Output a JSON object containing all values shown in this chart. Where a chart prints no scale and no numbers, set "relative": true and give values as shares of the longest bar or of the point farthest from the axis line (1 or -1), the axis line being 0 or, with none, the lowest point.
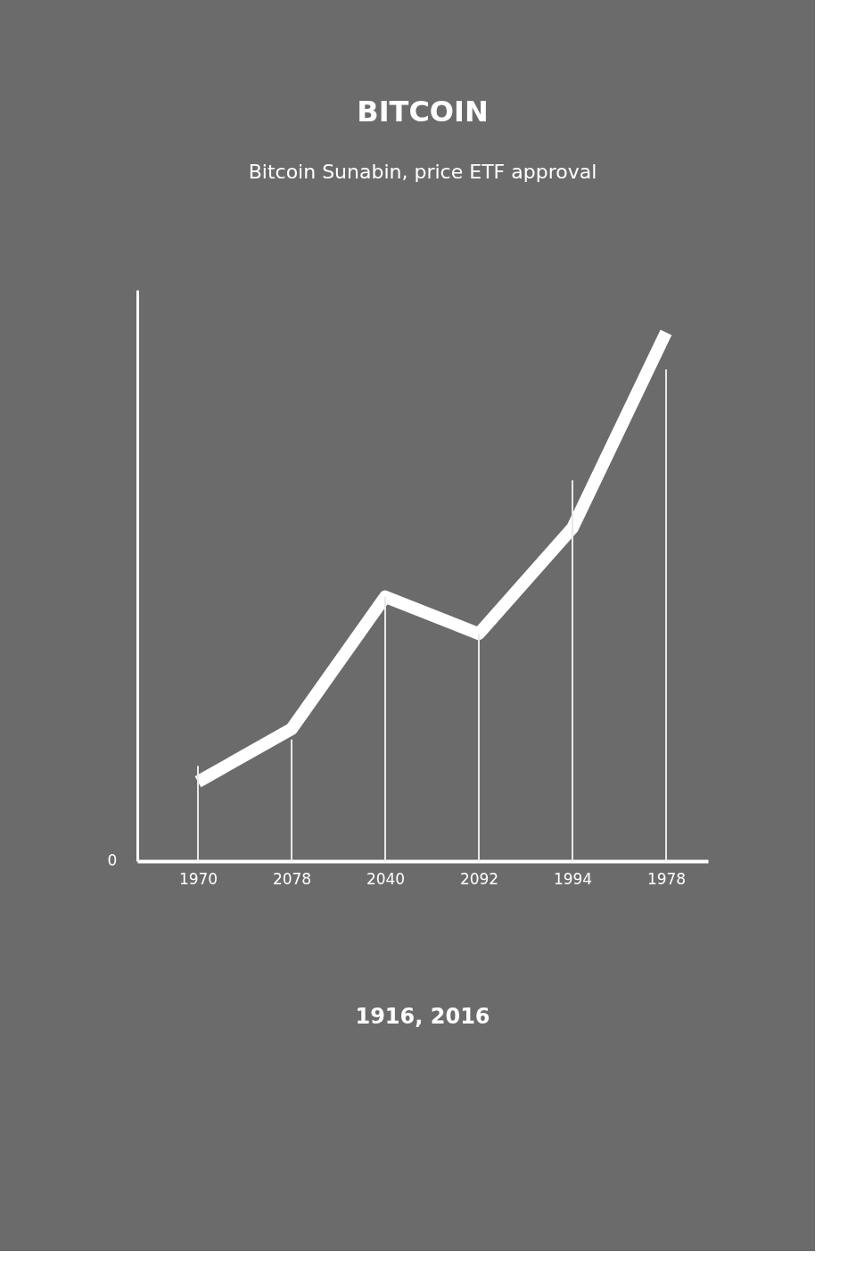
{
  "chart_data": {
    "type": "line",
    "title": "BITCOIN",
    "subtitle": "Bitcoin Sunabin, price ETF approval",
    "categories": [
      "1970",
      "2078",
      "2040",
      "2092",
      "1994",
      "1978"
    ],
    "relative": true,
    "grid": false,
    "marker": "none",
    "line_style": "solid",
    "series": [
      {
        "type": "bar",
        "color": "#e8e8e8",
        "values": [
          0.18,
          0.23,
          0.5,
          0.43,
          0.72,
          0.93
        ]
      },
      {
        "color": "#ffffff",
        "values": [
          0.15,
          0.25,
          0.5,
          0.43,
          0.63,
          1.0
        ]
      }
    ],
    "annotations": [
      "0",
      "1916, 2016"
    ]
  }
}
